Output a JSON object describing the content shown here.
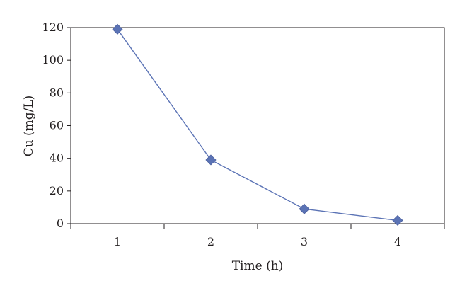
{
  "chart_data": {
    "type": "line",
    "title": "",
    "xlabel": "Time (h)",
    "ylabel": "Cu (mg/L)",
    "x": [
      1,
      2,
      3,
      4
    ],
    "x_ticks": [
      "1",
      "2",
      "3",
      "4"
    ],
    "y_ticks": [
      "0",
      "20",
      "40",
      "60",
      "80",
      "100",
      "120"
    ],
    "ylim": [
      0,
      120
    ],
    "xlim": [
      0.5,
      4.5
    ],
    "grid": false,
    "series": [
      {
        "values": [
          119,
          39,
          9,
          2
        ],
        "color": "#5b73b5",
        "marker": "diamond"
      }
    ]
  }
}
